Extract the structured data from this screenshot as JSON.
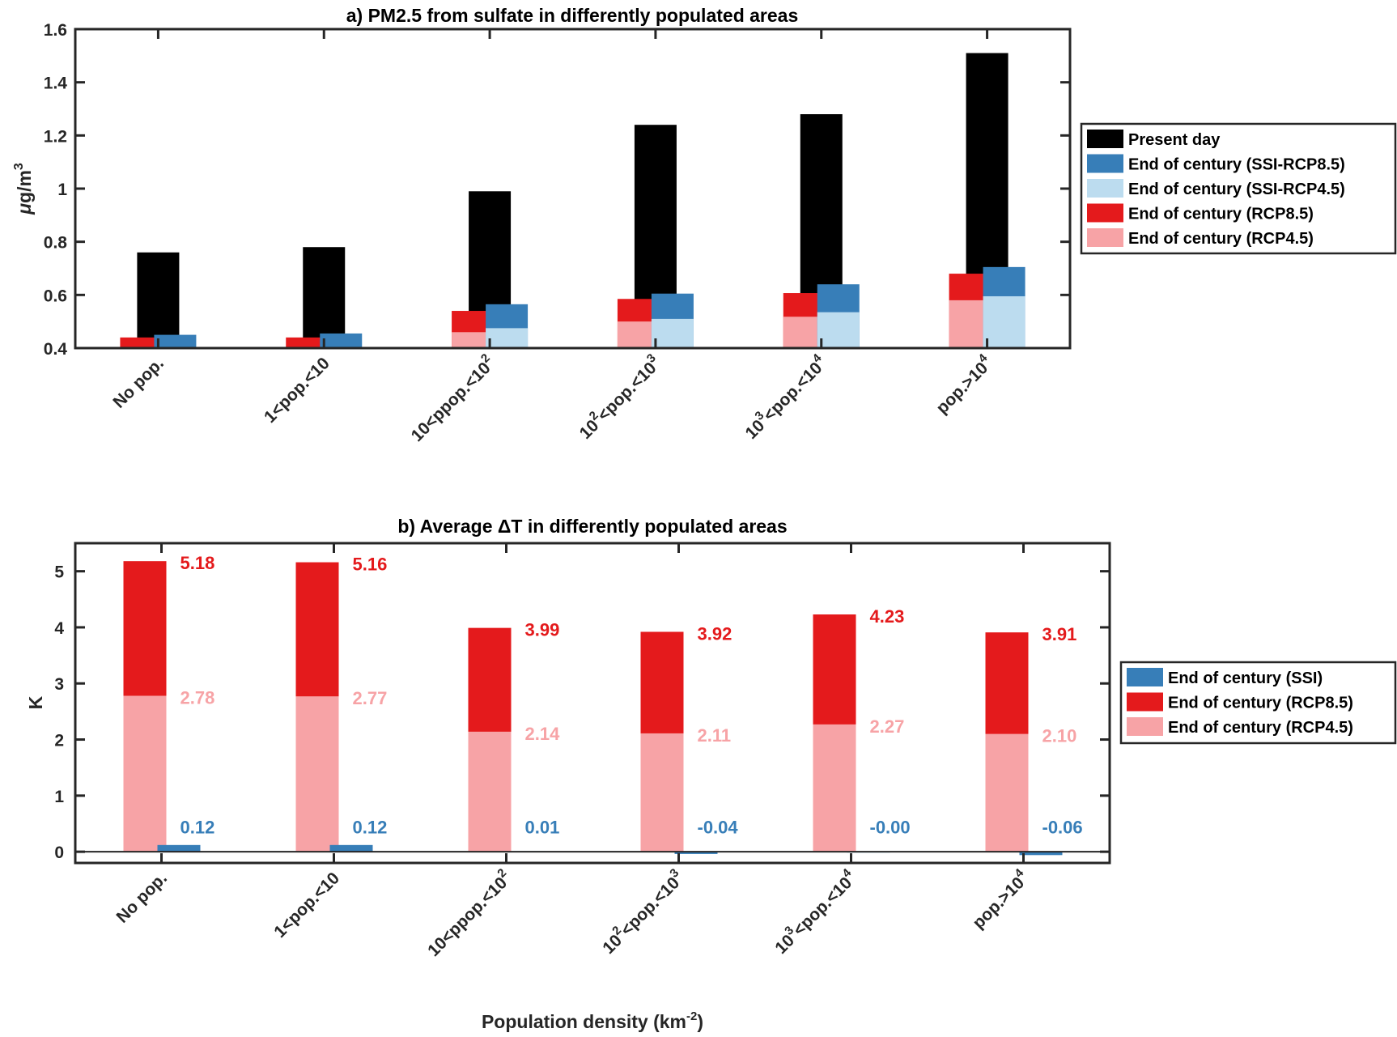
{
  "colors": {
    "present_day": "#000000",
    "ssi_rcp85": "#377eb8",
    "ssi_rcp45": "#bcdcef",
    "rcp85": "#e41a1c",
    "rcp45": "#f7a3a6",
    "axis": "#262626"
  },
  "chart_data": [
    {
      "type": "bar",
      "panel": "a",
      "title": "a) PM2.5 from sulfate in differently populated areas",
      "xlabel": "",
      "ylabel": "μg/m³",
      "ylim": [
        0.4,
        1.6
      ],
      "yticks": [
        0.4,
        0.6,
        0.8,
        1,
        1.2,
        1.4,
        1.6
      ],
      "ytick_labels": [
        "0.4",
        "0.6",
        "0.8",
        "1",
        "1.2",
        "1.4",
        "1.6"
      ],
      "categories": [
        "No pop.",
        "1<pop.<10",
        "10<ppop.<10²",
        "10²<pop.<10³",
        "10³<pop.<10⁴",
        "pop.>10⁴"
      ],
      "grid": false,
      "legend_position": "right",
      "series": [
        {
          "name": "Present day",
          "key": "present_day",
          "values": [
            0.76,
            0.78,
            0.99,
            1.24,
            1.28,
            1.51
          ]
        },
        {
          "name": "End of century (SSI-RCP8.5)",
          "key": "ssi_rcp85",
          "values": [
            0.45,
            0.455,
            0.565,
            0.605,
            0.64,
            0.705
          ]
        },
        {
          "name": "End of century (SSI-RCP4.5)",
          "key": "ssi_rcp45",
          "values": [
            null,
            null,
            0.475,
            0.51,
            0.535,
            0.595
          ]
        },
        {
          "name": "End of century (RCP8.5)",
          "key": "rcp85",
          "values": [
            0.44,
            0.44,
            0.54,
            0.585,
            0.607,
            0.68
          ]
        },
        {
          "name": "End of century (RCP4.5)",
          "key": "rcp45",
          "values": [
            null,
            null,
            0.46,
            0.5,
            0.518,
            0.58
          ]
        }
      ]
    },
    {
      "type": "bar",
      "panel": "b",
      "title": "b) Average ΔT in differently populated areas",
      "xlabel": "Population density (km⁻²)",
      "ylabel": "K",
      "ylim": [
        -0.2,
        5.5
      ],
      "yticks": [
        0,
        1,
        2,
        3,
        4,
        5
      ],
      "ytick_labels": [
        "0",
        "1",
        "2",
        "3",
        "4",
        "5"
      ],
      "categories": [
        "No pop.",
        "1<pop.<10",
        "10<ppop.<10²",
        "10²<pop.<10³",
        "10³<pop.<10⁴",
        "pop.>10⁴"
      ],
      "grid": false,
      "legend_position": "right",
      "series": [
        {
          "name": "End of century (SSI)",
          "key": "ssi_rcp85",
          "values": [
            0.12,
            0.12,
            0.01,
            -0.04,
            -0.0,
            -0.06
          ],
          "labels": [
            "0.12",
            "0.12",
            "0.01",
            "-0.04",
            "-0.00",
            "-0.06"
          ]
        },
        {
          "name": "End of century (RCP8.5)",
          "key": "rcp85",
          "values": [
            5.18,
            5.16,
            3.99,
            3.92,
            4.23,
            3.91
          ],
          "labels": [
            "5.18",
            "5.16",
            "3.99",
            "3.92",
            "4.23",
            "3.91"
          ]
        },
        {
          "name": "End of century (RCP4.5)",
          "key": "rcp45",
          "values": [
            2.78,
            2.77,
            2.14,
            2.11,
            2.27,
            2.1
          ],
          "labels": [
            "2.78",
            "2.77",
            "2.14",
            "2.11",
            "2.27",
            "2.10"
          ]
        }
      ]
    }
  ]
}
